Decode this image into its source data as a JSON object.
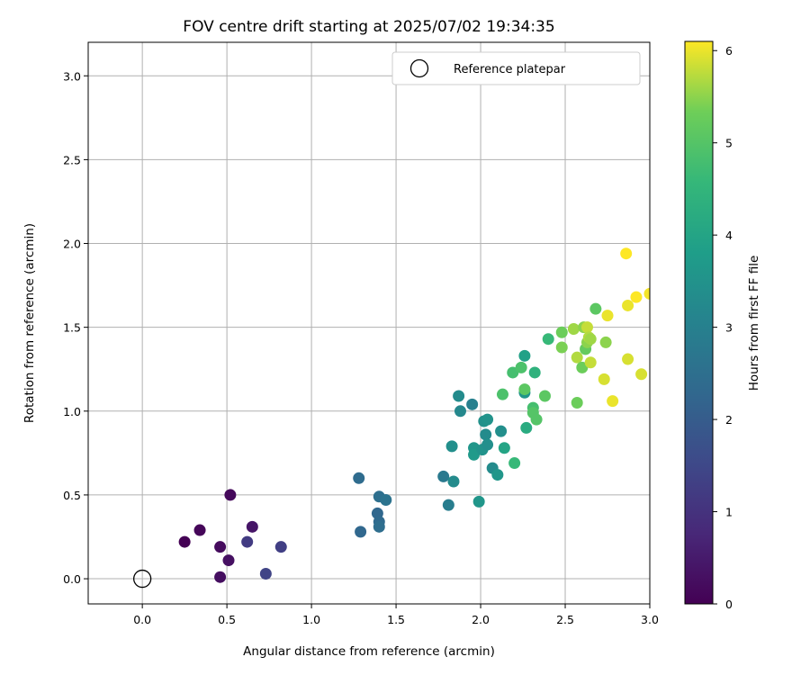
{
  "chart_data": {
    "type": "scatter",
    "title": "FOV centre drift starting at 2025/07/02 19:34:35",
    "xlabel": "Angular distance from reference (arcmin)",
    "ylabel": "Rotation from reference (arcmin)",
    "xlim": [
      -0.32,
      3.0
    ],
    "ylim": [
      -0.15,
      3.2
    ],
    "xticks": [
      "0.0",
      "0.5",
      "1.0",
      "1.5",
      "2.0",
      "2.5",
      "3.0"
    ],
    "yticks": [
      "0.0",
      "0.5",
      "1.0",
      "1.5",
      "2.0",
      "2.5",
      "3.0"
    ],
    "grid": true,
    "legend": {
      "label": "Reference platepar",
      "position": "top-right"
    },
    "reference_point": {
      "x": 0.0,
      "y": 0.0
    },
    "colorbar": {
      "label": "Hours from first FF file",
      "colormap": "viridis",
      "range": [
        0,
        6.1
      ],
      "ticks": [
        "0",
        "1",
        "2",
        "3",
        "4",
        "5",
        "6"
      ]
    },
    "points": [
      {
        "x": 0.25,
        "y": 0.22,
        "c": 0.0
      },
      {
        "x": 0.34,
        "y": 0.29,
        "c": 0.1
      },
      {
        "x": 0.46,
        "y": 0.19,
        "c": 0.2
      },
      {
        "x": 0.46,
        "y": 0.01,
        "c": 0.25
      },
      {
        "x": 0.51,
        "y": 0.11,
        "c": 0.3
      },
      {
        "x": 0.52,
        "y": 0.5,
        "c": 0.15
      },
      {
        "x": 0.65,
        "y": 0.31,
        "c": 0.4
      },
      {
        "x": 0.62,
        "y": 0.22,
        "c": 1.2
      },
      {
        "x": 0.73,
        "y": 0.03,
        "c": 1.4
      },
      {
        "x": 0.82,
        "y": 0.19,
        "c": 1.3
      },
      {
        "x": 1.28,
        "y": 0.6,
        "c": 2.4
      },
      {
        "x": 1.29,
        "y": 0.28,
        "c": 2.3
      },
      {
        "x": 1.4,
        "y": 0.49,
        "c": 2.5
      },
      {
        "x": 1.44,
        "y": 0.47,
        "c": 2.6
      },
      {
        "x": 1.39,
        "y": 0.39,
        "c": 2.3
      },
      {
        "x": 1.4,
        "y": 0.34,
        "c": 2.35
      },
      {
        "x": 1.4,
        "y": 0.31,
        "c": 2.45
      },
      {
        "x": 1.78,
        "y": 0.61,
        "c": 2.8
      },
      {
        "x": 1.81,
        "y": 0.44,
        "c": 2.9
      },
      {
        "x": 1.84,
        "y": 0.58,
        "c": 3.3
      },
      {
        "x": 1.83,
        "y": 0.79,
        "c": 3.4
      },
      {
        "x": 1.87,
        "y": 1.09,
        "c": 3.3
      },
      {
        "x": 1.88,
        "y": 1.0,
        "c": 3.2
      },
      {
        "x": 1.95,
        "y": 1.04,
        "c": 3.0
      },
      {
        "x": 1.96,
        "y": 0.78,
        "c": 3.6
      },
      {
        "x": 1.96,
        "y": 0.74,
        "c": 3.7
      },
      {
        "x": 1.99,
        "y": 0.46,
        "c": 3.6
      },
      {
        "x": 2.01,
        "y": 0.77,
        "c": 3.5
      },
      {
        "x": 2.02,
        "y": 0.94,
        "c": 3.45
      },
      {
        "x": 2.04,
        "y": 0.95,
        "c": 3.5
      },
      {
        "x": 2.03,
        "y": 0.86,
        "c": 3.3
      },
      {
        "x": 2.04,
        "y": 0.8,
        "c": 3.4
      },
      {
        "x": 2.07,
        "y": 0.66,
        "c": 3.3
      },
      {
        "x": 2.1,
        "y": 0.62,
        "c": 3.6
      },
      {
        "x": 2.12,
        "y": 0.88,
        "c": 3.4
      },
      {
        "x": 2.14,
        "y": 0.78,
        "c": 4.0
      },
      {
        "x": 2.2,
        "y": 0.69,
        "c": 4.6
      },
      {
        "x": 2.13,
        "y": 1.1,
        "c": 4.9
      },
      {
        "x": 2.19,
        "y": 1.23,
        "c": 4.8
      },
      {
        "x": 2.24,
        "y": 1.26,
        "c": 4.9
      },
      {
        "x": 2.26,
        "y": 1.11,
        "c": 3.6
      },
      {
        "x": 2.26,
        "y": 1.13,
        "c": 5.1
      },
      {
        "x": 2.27,
        "y": 0.9,
        "c": 4.2
      },
      {
        "x": 2.26,
        "y": 1.33,
        "c": 3.9
      },
      {
        "x": 2.31,
        "y": 1.02,
        "c": 4.8
      },
      {
        "x": 2.31,
        "y": 0.99,
        "c": 5.0
      },
      {
        "x": 2.32,
        "y": 1.23,
        "c": 4.4
      },
      {
        "x": 2.33,
        "y": 0.95,
        "c": 5.0
      },
      {
        "x": 2.38,
        "y": 1.09,
        "c": 5.1
      },
      {
        "x": 2.4,
        "y": 1.43,
        "c": 4.6
      },
      {
        "x": 2.48,
        "y": 1.38,
        "c": 5.4
      },
      {
        "x": 2.48,
        "y": 1.47,
        "c": 5.3
      },
      {
        "x": 2.55,
        "y": 1.49,
        "c": 5.6
      },
      {
        "x": 2.57,
        "y": 1.32,
        "c": 5.7
      },
      {
        "x": 2.57,
        "y": 1.05,
        "c": 5.3
      },
      {
        "x": 2.6,
        "y": 1.26,
        "c": 5.3
      },
      {
        "x": 2.61,
        "y": 1.5,
        "c": 5.5
      },
      {
        "x": 2.62,
        "y": 1.37,
        "c": 5.2
      },
      {
        "x": 2.63,
        "y": 1.5,
        "c": 5.8
      },
      {
        "x": 2.63,
        "y": 1.41,
        "c": 5.5
      },
      {
        "x": 2.64,
        "y": 1.44,
        "c": 5.7
      },
      {
        "x": 2.65,
        "y": 1.43,
        "c": 5.6
      },
      {
        "x": 2.65,
        "y": 1.29,
        "c": 5.8
      },
      {
        "x": 2.68,
        "y": 1.61,
        "c": 5.1
      },
      {
        "x": 2.73,
        "y": 1.19,
        "c": 5.9
      },
      {
        "x": 2.74,
        "y": 1.41,
        "c": 5.5
      },
      {
        "x": 2.75,
        "y": 1.57,
        "c": 6.0
      },
      {
        "x": 2.78,
        "y": 1.06,
        "c": 6.0
      },
      {
        "x": 2.86,
        "y": 1.94,
        "c": 6.1
      },
      {
        "x": 2.87,
        "y": 1.63,
        "c": 6.0
      },
      {
        "x": 2.87,
        "y": 1.31,
        "c": 5.9
      },
      {
        "x": 2.92,
        "y": 1.68,
        "c": 6.1
      },
      {
        "x": 2.95,
        "y": 1.22,
        "c": 5.9
      },
      {
        "x": 3.0,
        "y": 1.7,
        "c": 6.05
      }
    ]
  }
}
